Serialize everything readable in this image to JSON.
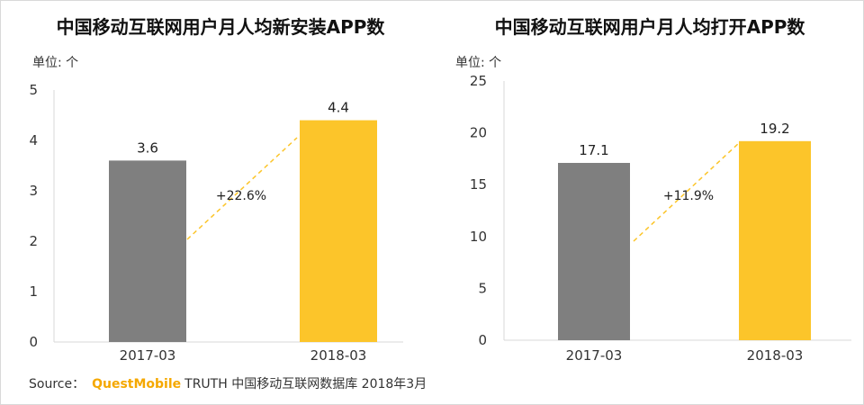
{
  "colors": {
    "bar_2017": "#7f7f7f",
    "bar_2018": "#fcc52a",
    "trend": "#fcc52a",
    "axis": "#d9d9d9"
  },
  "chart_data": [
    {
      "type": "bar",
      "title": "中国移动互联网用户月人均新安装APP数",
      "unit_label": "单位: 个",
      "categories": [
        "2017-03",
        "2018-03"
      ],
      "values": [
        3.6,
        4.4
      ],
      "value_labels": [
        "3.6",
        "4.4"
      ],
      "ylim": [
        0,
        5
      ],
      "yticks": [
        0,
        1,
        2,
        3,
        4,
        5
      ],
      "growth_label": "+22.6%",
      "grid": false
    },
    {
      "type": "bar",
      "title": "中国移动互联网用户月人均打开APP数",
      "unit_label": "单位: 个",
      "categories": [
        "2017-03",
        "2018-03"
      ],
      "values": [
        17.1,
        19.2
      ],
      "value_labels": [
        "17.1",
        "19.2"
      ],
      "ylim": [
        0,
        25
      ],
      "yticks": [
        0,
        5,
        10,
        15,
        20,
        25
      ],
      "growth_label": "+11.9%",
      "grid": false
    }
  ],
  "source": {
    "prefix": "Source：",
    "brand": "QuestMobile",
    "suffix": "TRUTH 中国移动互联网数据库 2018年3月"
  }
}
